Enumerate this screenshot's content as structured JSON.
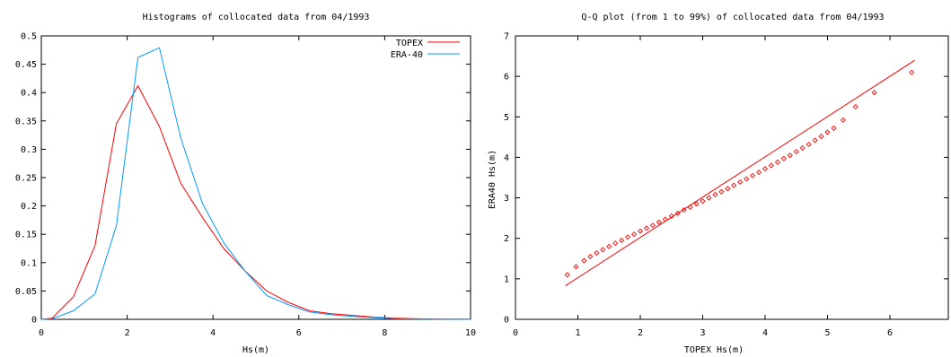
{
  "chart_data": [
    {
      "type": "line",
      "title": "Histograms of collocated data from 04/1993",
      "xlabel": "Hs(m)",
      "ylabel": "",
      "xlim": [
        0,
        10
      ],
      "ylim": [
        0,
        0.5
      ],
      "xticks": [
        "0",
        "2",
        "4",
        "6",
        "8",
        "10"
      ],
      "yticks": [
        "0",
        "0.05",
        "0.1",
        "0.15",
        "0.2",
        "0.25",
        "0.3",
        "0.35",
        "0.4",
        "0.45",
        "0.5"
      ],
      "legend_position": "top-right",
      "grid": false,
      "series": [
        {
          "name": "TOPEX",
          "color": "#ff0000",
          "x": [
            0.0,
            0.25,
            0.75,
            1.25,
            1.75,
            2.25,
            2.75,
            3.25,
            3.75,
            4.25,
            4.75,
            5.25,
            5.75,
            6.25,
            6.75,
            7.25,
            7.75,
            8.25,
            8.75,
            9.25,
            9.75,
            10.0
          ],
          "y": [
            0.0,
            0.002,
            0.04,
            0.13,
            0.345,
            0.412,
            0.34,
            0.24,
            0.18,
            0.125,
            0.085,
            0.05,
            0.03,
            0.015,
            0.01,
            0.007,
            0.004,
            0.002,
            0.001,
            0.0005,
            0.0003,
            0.0002
          ]
        },
        {
          "name": "ERA-40",
          "color": "#0099ff",
          "x": [
            0.0,
            0.25,
            0.75,
            1.25,
            1.75,
            2.25,
            2.75,
            3.25,
            3.75,
            4.25,
            4.75,
            5.25,
            5.75,
            6.25,
            6.75,
            7.25,
            7.75,
            8.25,
            8.75,
            9.25,
            9.75,
            10.0
          ],
          "y": [
            0.0,
            0.001,
            0.015,
            0.045,
            0.165,
            0.462,
            0.479,
            0.32,
            0.205,
            0.135,
            0.085,
            0.042,
            0.026,
            0.013,
            0.008,
            0.005,
            0.003,
            0.001,
            0.0005,
            0.0003,
            0.0002,
            0.0001
          ]
        }
      ]
    },
    {
      "type": "scatter",
      "title": "Q-Q plot (from 1 to 99%) of collocated data from 04/1993",
      "xlabel": "TOPEX Hs(m)",
      "ylabel": "ERA40 Hs(m)",
      "xlim": [
        0,
        7
      ],
      "ylim": [
        0,
        7
      ],
      "xticks": [
        "0",
        "1",
        "2",
        "3",
        "4",
        "5",
        "6"
      ],
      "yticks": [
        "0",
        "1",
        "2",
        "3",
        "4",
        "5",
        "6",
        "7"
      ],
      "grid": false,
      "marker_color": "#ff0000",
      "reference_line": {
        "x": [
          0.8,
          6.4
        ],
        "y": [
          0.83,
          6.4
        ]
      },
      "points": {
        "x": [
          0.83,
          0.97,
          1.1,
          1.2,
          1.3,
          1.4,
          1.5,
          1.6,
          1.7,
          1.8,
          1.9,
          2.0,
          2.1,
          2.2,
          2.3,
          2.4,
          2.5,
          2.6,
          2.7,
          2.8,
          2.9,
          3.0,
          3.1,
          3.2,
          3.3,
          3.4,
          3.5,
          3.6,
          3.7,
          3.8,
          3.9,
          4.0,
          4.1,
          4.2,
          4.3,
          4.4,
          4.5,
          4.6,
          4.7,
          4.8,
          4.9,
          5.0,
          5.1,
          5.25,
          5.45,
          5.75,
          6.35
        ],
        "y": [
          1.1,
          1.3,
          1.45,
          1.55,
          1.64,
          1.72,
          1.8,
          1.88,
          1.95,
          2.03,
          2.1,
          2.18,
          2.25,
          2.32,
          2.4,
          2.47,
          2.55,
          2.62,
          2.7,
          2.77,
          2.85,
          2.92,
          3.0,
          3.08,
          3.15,
          3.23,
          3.31,
          3.39,
          3.47,
          3.55,
          3.63,
          3.72,
          3.8,
          3.88,
          3.97,
          4.05,
          4.14,
          4.23,
          4.32,
          4.42,
          4.52,
          4.62,
          4.72,
          4.92,
          5.25,
          5.6,
          6.1
        ]
      }
    }
  ]
}
